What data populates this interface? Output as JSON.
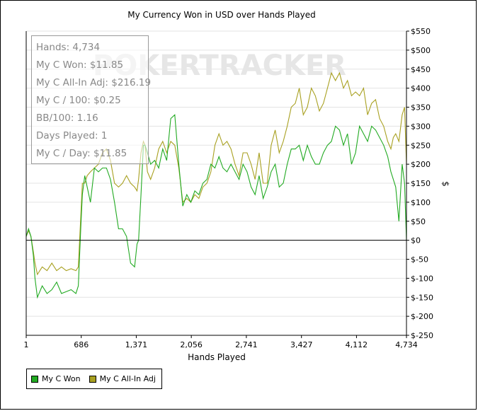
{
  "chart_data": {
    "type": "line",
    "title": "My Currency Won in USD over Hands Played",
    "xlabel": "Hands Played",
    "ylabel": "$",
    "xlim": [
      1,
      4734
    ],
    "ylim": [
      -250,
      550
    ],
    "x_ticks": [
      "1",
      "686",
      "1,371",
      "2,056",
      "2,741",
      "3,427",
      "4,112",
      "4,734"
    ],
    "x_tick_values": [
      1,
      686,
      1371,
      2056,
      2741,
      3427,
      4112,
      4734
    ],
    "y_ticks": [
      "$550",
      "$500",
      "$450",
      "$400",
      "$350",
      "$300",
      "$250",
      "$200",
      "$150",
      "$100",
      "$50",
      "$0",
      "$-50",
      "$-100",
      "$-150",
      "$-200",
      "$-250"
    ],
    "y_tick_values": [
      550,
      500,
      450,
      400,
      350,
      300,
      250,
      200,
      150,
      100,
      50,
      0,
      -50,
      -100,
      -150,
      -200,
      -250
    ],
    "grid": true,
    "legend_position": "bottom-left",
    "watermark": "POKERTRACKER",
    "series": [
      {
        "name": "My C Won",
        "color": "#22aa22",
        "x": [
          1,
          30,
          60,
          90,
          110,
          140,
          200,
          260,
          320,
          380,
          440,
          500,
          560,
          620,
          650,
          680,
          700,
          730,
          760,
          800,
          850,
          900,
          950,
          1000,
          1050,
          1100,
          1150,
          1200,
          1250,
          1300,
          1350,
          1380,
          1400,
          1430,
          1460,
          1480,
          1510,
          1550,
          1600,
          1650,
          1700,
          1750,
          1800,
          1850,
          1900,
          1950,
          2000,
          2050,
          2100,
          2150,
          2200,
          2250,
          2300,
          2350,
          2400,
          2450,
          2500,
          2550,
          2600,
          2650,
          2700,
          2750,
          2800,
          2850,
          2900,
          2950,
          3000,
          3050,
          3100,
          3150,
          3200,
          3250,
          3300,
          3350,
          3400,
          3450,
          3500,
          3550,
          3600,
          3650,
          3700,
          3750,
          3800,
          3850,
          3900,
          3950,
          4000,
          4050,
          4100,
          4150,
          4200,
          4250,
          4300,
          4350,
          4400,
          4450,
          4500,
          4540,
          4570,
          4600,
          4640,
          4680,
          4710,
          4734
        ],
        "y": [
          10,
          30,
          10,
          -40,
          -100,
          -150,
          -120,
          -140,
          -130,
          -110,
          -140,
          -135,
          -130,
          -140,
          -120,
          30,
          120,
          170,
          140,
          100,
          190,
          180,
          190,
          190,
          160,
          100,
          30,
          30,
          10,
          -60,
          -70,
          -10,
          0,
          120,
          250,
          250,
          230,
          200,
          210,
          190,
          240,
          210,
          320,
          330,
          200,
          90,
          120,
          100,
          130,
          120,
          150,
          160,
          200,
          190,
          220,
          190,
          180,
          200,
          180,
          160,
          200,
          180,
          140,
          120,
          170,
          110,
          140,
          180,
          200,
          140,
          150,
          200,
          240,
          240,
          250,
          210,
          250,
          220,
          200,
          200,
          230,
          250,
          260,
          300,
          290,
          250,
          280,
          200,
          230,
          300,
          280,
          260,
          300,
          290,
          270,
          250,
          220,
          180,
          160,
          140,
          50,
          200,
          150,
          0
        ]
      },
      {
        "name": "My C All-In Adj",
        "color": "#a8a020",
        "x": [
          1,
          30,
          60,
          90,
          110,
          140,
          200,
          260,
          320,
          380,
          440,
          500,
          560,
          620,
          650,
          680,
          700,
          730,
          760,
          800,
          850,
          900,
          950,
          1000,
          1050,
          1100,
          1150,
          1200,
          1250,
          1300,
          1350,
          1380,
          1400,
          1430,
          1460,
          1480,
          1510,
          1550,
          1600,
          1650,
          1700,
          1750,
          1800,
          1850,
          1900,
          1950,
          2000,
          2050,
          2100,
          2150,
          2200,
          2250,
          2300,
          2350,
          2400,
          2450,
          2500,
          2550,
          2600,
          2650,
          2700,
          2750,
          2800,
          2850,
          2900,
          2950,
          3000,
          3050,
          3100,
          3150,
          3200,
          3250,
          3300,
          3350,
          3400,
          3450,
          3500,
          3550,
          3600,
          3650,
          3700,
          3750,
          3800,
          3850,
          3900,
          3950,
          4000,
          4050,
          4100,
          4150,
          4200,
          4250,
          4300,
          4350,
          4400,
          4450,
          4500,
          4540,
          4570,
          4600,
          4640,
          4680,
          4710,
          4734
        ],
        "y": [
          10,
          25,
          10,
          -30,
          -60,
          -90,
          -70,
          -80,
          -60,
          -80,
          -70,
          -80,
          -75,
          -80,
          -70,
          60,
          150,
          150,
          170,
          180,
          190,
          200,
          230,
          240,
          210,
          150,
          140,
          150,
          170,
          150,
          140,
          130,
          160,
          230,
          260,
          250,
          180,
          160,
          190,
          240,
          260,
          230,
          260,
          250,
          190,
          100,
          110,
          100,
          120,
          110,
          140,
          150,
          180,
          250,
          280,
          250,
          260,
          240,
          200,
          170,
          230,
          230,
          200,
          160,
          230,
          150,
          150,
          250,
          290,
          230,
          260,
          300,
          350,
          360,
          400,
          330,
          350,
          400,
          380,
          340,
          360,
          400,
          440,
          420,
          440,
          400,
          420,
          380,
          390,
          380,
          400,
          330,
          360,
          370,
          320,
          300,
          260,
          240,
          270,
          280,
          260,
          330,
          350,
          200
        ]
      }
    ]
  },
  "stats": [
    "Hands: 4,734",
    "My C Won: $11.85",
    "My C All-In Adj: $216.19",
    "My C / 100: $0.25",
    "BB/100: 1.16",
    "Days Played: 1",
    "My C / Day: $11.85"
  ]
}
